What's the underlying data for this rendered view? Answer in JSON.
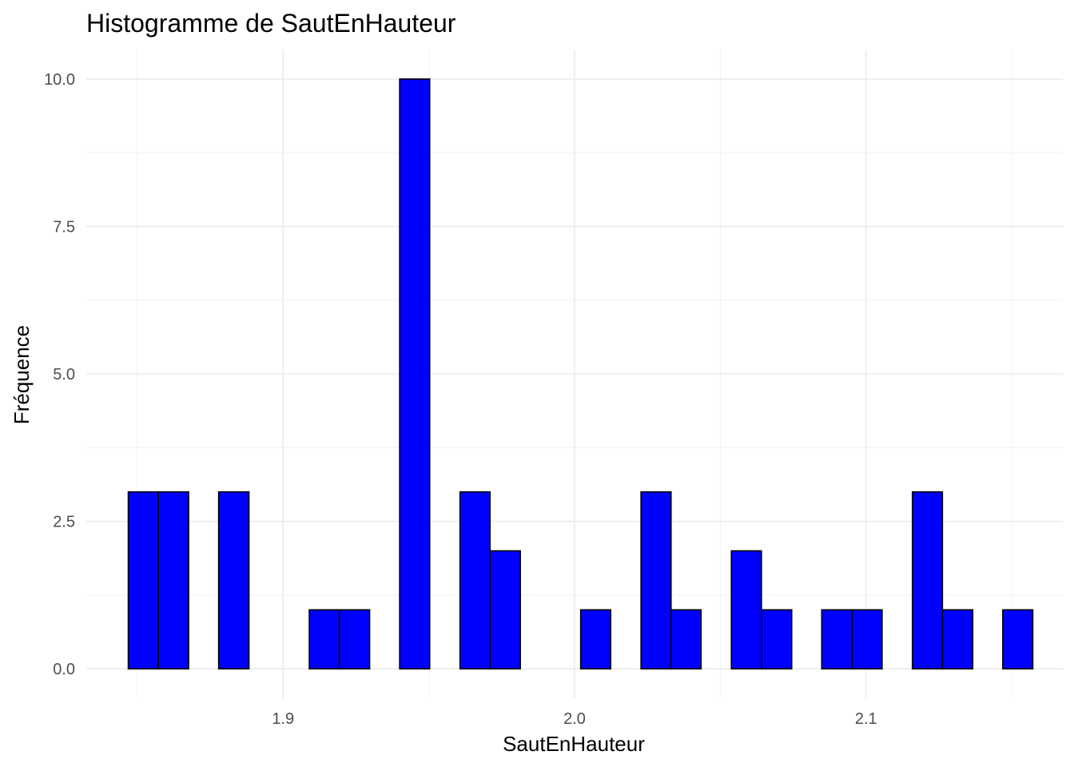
{
  "chart_data": {
    "type": "bar",
    "title": "Histogramme de SautEnHauteur",
    "xlabel": "SautEnHauteur",
    "ylabel": "Fréquence",
    "xlim": [
      1.8325,
      2.1675
    ],
    "ylim": [
      -0.5,
      10.5
    ],
    "bin_width": 0.010345,
    "x_ticks": [
      {
        "value": 1.9,
        "label": "1.9"
      },
      {
        "value": 2.0,
        "label": "2.0"
      },
      {
        "value": 2.1,
        "label": "2.1"
      }
    ],
    "y_ticks": [
      {
        "value": 0,
        "label": "0.0"
      },
      {
        "value": 2.5,
        "label": "2.5"
      },
      {
        "value": 5,
        "label": "5.0"
      },
      {
        "value": 7.5,
        "label": "7.5"
      },
      {
        "value": 10,
        "label": "10.0"
      }
    ],
    "bins": [
      {
        "x0": 1.8469,
        "x1": 1.8572,
        "count": 3
      },
      {
        "x0": 1.8572,
        "x1": 1.8676,
        "count": 3
      },
      {
        "x0": 1.8676,
        "x1": 1.8779,
        "count": 0
      },
      {
        "x0": 1.8779,
        "x1": 1.8883,
        "count": 3
      },
      {
        "x0": 1.8883,
        "x1": 1.8986,
        "count": 0
      },
      {
        "x0": 1.8986,
        "x1": 1.909,
        "count": 0
      },
      {
        "x0": 1.909,
        "x1": 1.9193,
        "count": 1
      },
      {
        "x0": 1.9193,
        "x1": 1.9297,
        "count": 1
      },
      {
        "x0": 1.9297,
        "x1": 1.94,
        "count": 0
      },
      {
        "x0": 1.94,
        "x1": 1.9503,
        "count": 10
      },
      {
        "x0": 1.9503,
        "x1": 1.9607,
        "count": 0
      },
      {
        "x0": 1.9607,
        "x1": 1.971,
        "count": 3
      },
      {
        "x0": 1.971,
        "x1": 1.9814,
        "count": 2
      },
      {
        "x0": 1.9814,
        "x1": 1.9917,
        "count": 0
      },
      {
        "x0": 1.9917,
        "x1": 2.0021,
        "count": 0
      },
      {
        "x0": 2.0021,
        "x1": 2.0124,
        "count": 1
      },
      {
        "x0": 2.0124,
        "x1": 2.0228,
        "count": 0
      },
      {
        "x0": 2.0228,
        "x1": 2.0331,
        "count": 3
      },
      {
        "x0": 2.0331,
        "x1": 2.0434,
        "count": 1
      },
      {
        "x0": 2.0434,
        "x1": 2.0538,
        "count": 0
      },
      {
        "x0": 2.0538,
        "x1": 2.0641,
        "count": 2
      },
      {
        "x0": 2.0641,
        "x1": 2.0745,
        "count": 1
      },
      {
        "x0": 2.0745,
        "x1": 2.0848,
        "count": 0
      },
      {
        "x0": 2.0848,
        "x1": 2.0952,
        "count": 1
      },
      {
        "x0": 2.0952,
        "x1": 2.1055,
        "count": 1
      },
      {
        "x0": 2.1055,
        "x1": 2.1159,
        "count": 0
      },
      {
        "x0": 2.1159,
        "x1": 2.1262,
        "count": 3
      },
      {
        "x0": 2.1262,
        "x1": 2.1366,
        "count": 1
      },
      {
        "x0": 2.1366,
        "x1": 2.1469,
        "count": 0
      },
      {
        "x0": 2.1469,
        "x1": 2.1572,
        "count": 1
      }
    ],
    "grid": true,
    "legend": "none",
    "colors": {
      "fill": "#0000ff",
      "outline": "#000000"
    }
  }
}
